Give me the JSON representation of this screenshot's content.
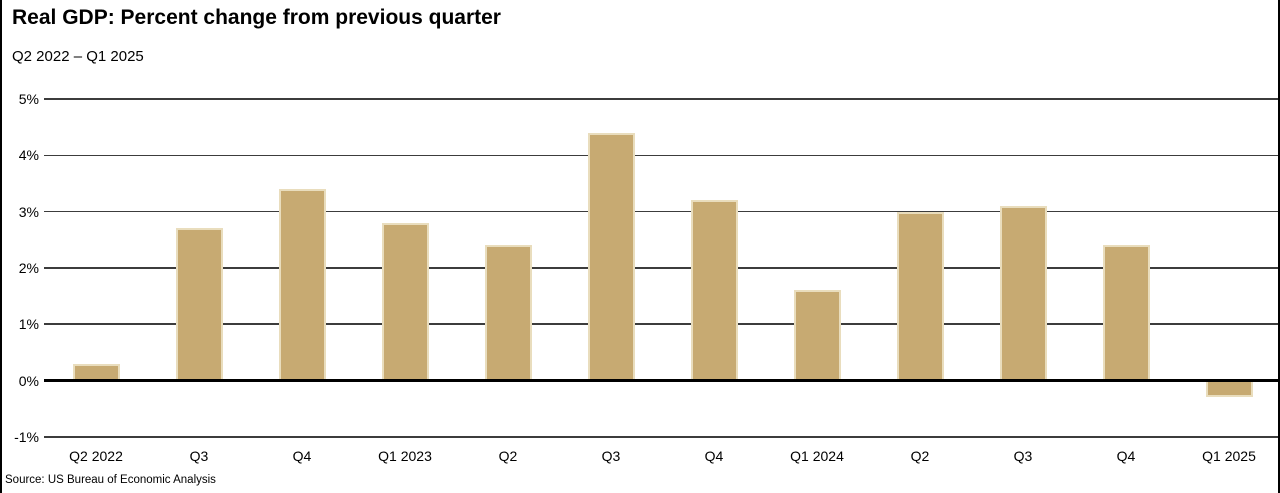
{
  "header": {
    "title": "Real GDP: Percent change from previous quarter",
    "subtitle": "Q2 2022 – Q1 2025"
  },
  "footer": {
    "source": "Source: US Bureau of Economic Analysis"
  },
  "chart_data": {
    "type": "bar",
    "title": "Real GDP: Percent change from previous quarter",
    "subtitle": "Q2 2022 – Q1 2025",
    "categories": [
      "Q2 2022",
      "Q3",
      "Q4",
      "Q1 2023",
      "Q2",
      "Q3",
      "Q4",
      "Q1 2024",
      "Q2",
      "Q3",
      "Q4",
      "Q1 2025"
    ],
    "values": [
      0.3,
      2.7,
      3.4,
      2.8,
      2.4,
      4.4,
      3.2,
      1.6,
      3.0,
      3.1,
      2.4,
      -0.3
    ],
    "xlabel": "",
    "ylabel": "",
    "ylim": [
      -1,
      5
    ],
    "y_ticks": [
      {
        "value": 5,
        "label": "5%"
      },
      {
        "value": 4,
        "label": "4%"
      },
      {
        "value": 3,
        "label": "3%"
      },
      {
        "value": 2,
        "label": "2%"
      },
      {
        "value": 1,
        "label": "1%"
      },
      {
        "value": 0,
        "label": "0%"
      },
      {
        "value": -1,
        "label": "-1%"
      }
    ],
    "grid": "horizontal",
    "legend": "none",
    "bar_color": "#C7AA72",
    "bar_edge_color": "#E9DDBD",
    "gridline_color": "#3C3C3C",
    "zero_line_color": "#000000",
    "source": "Source: US Bureau of Economic Analysis"
  }
}
